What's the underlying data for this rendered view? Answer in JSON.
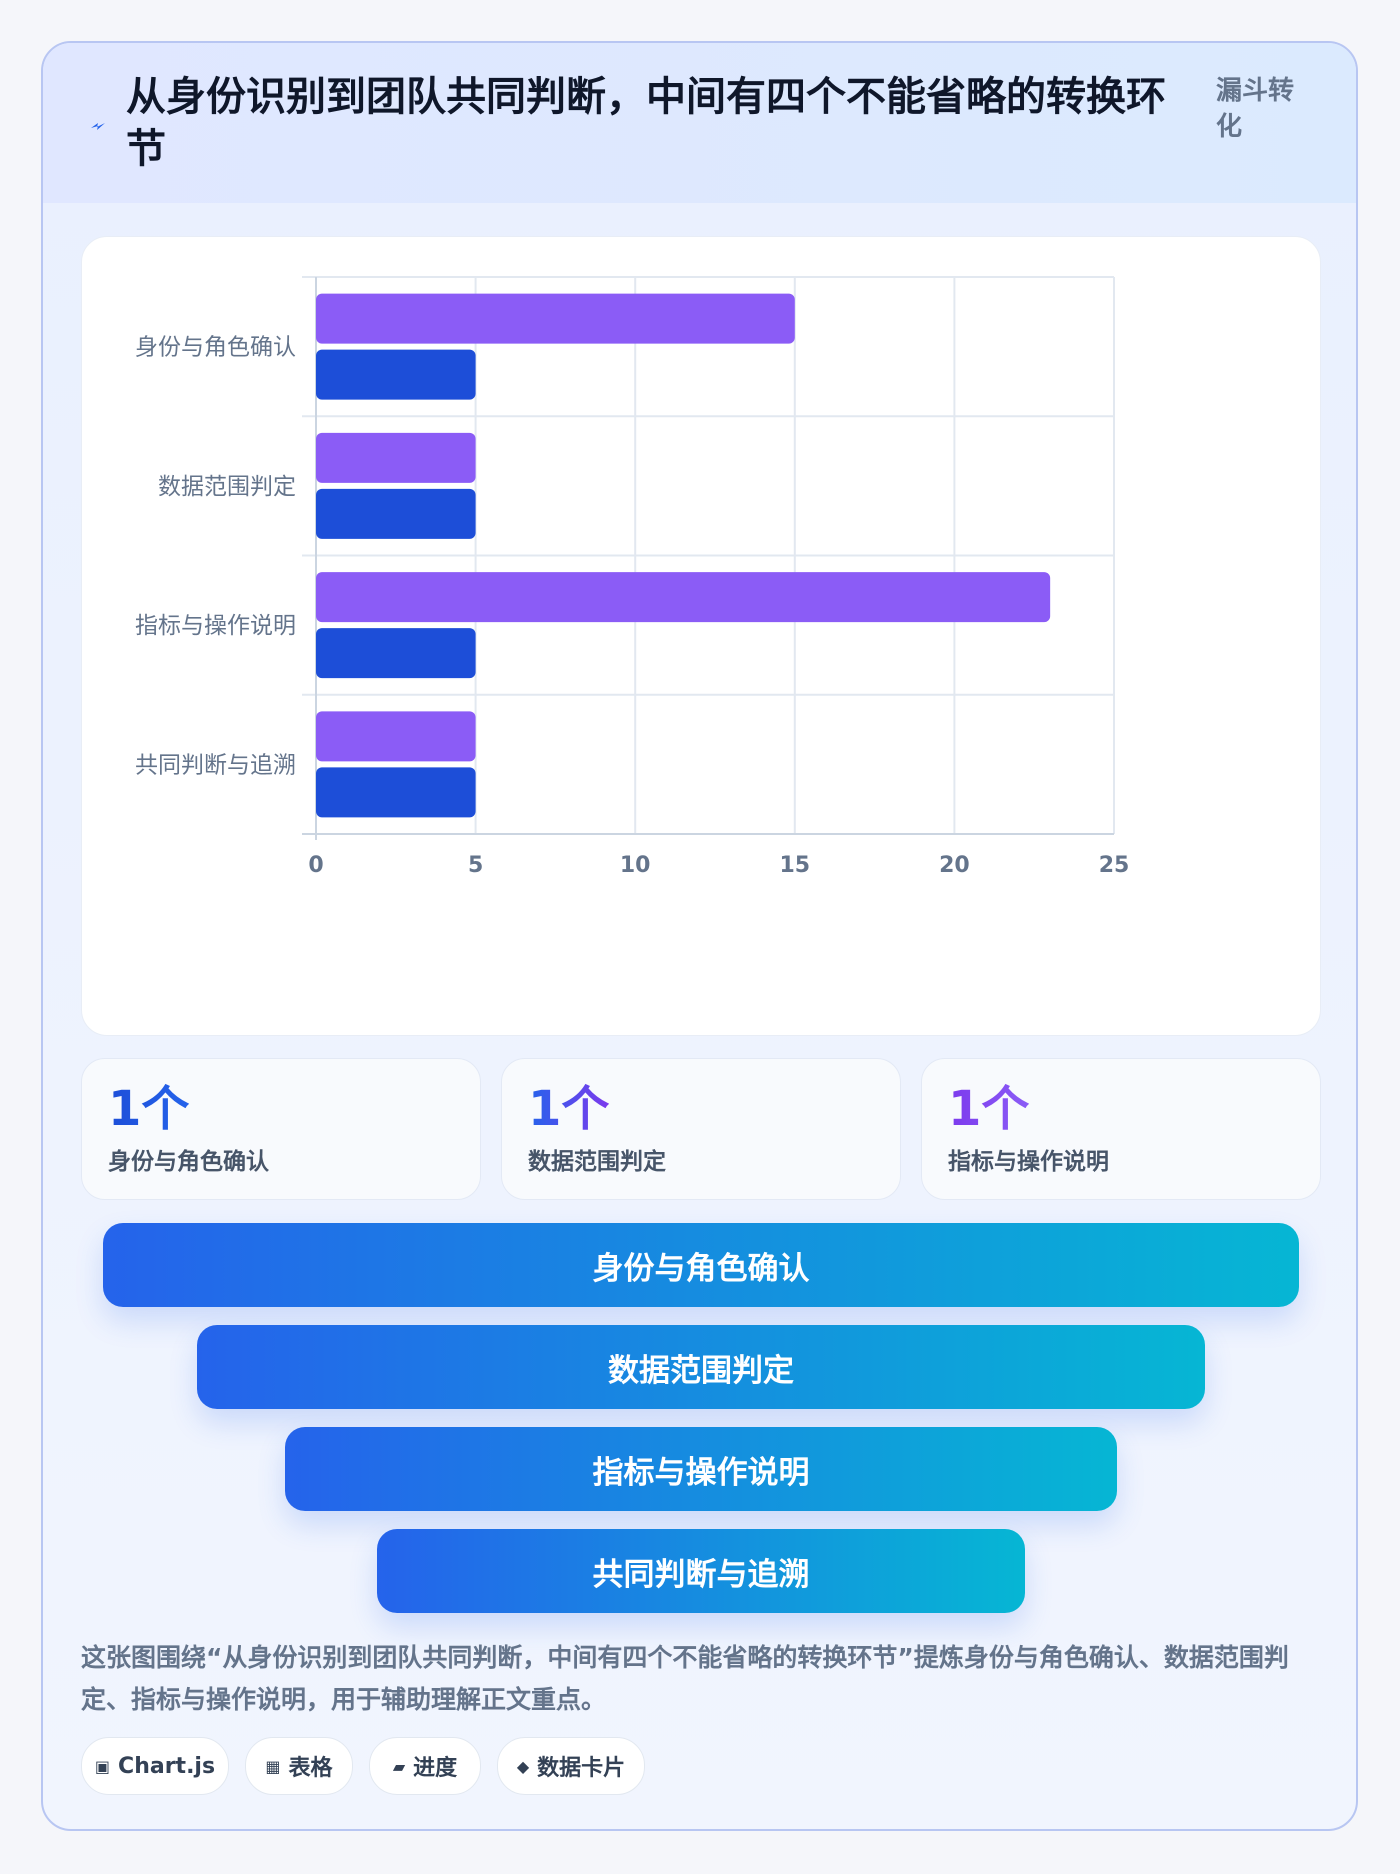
{
  "header": {
    "title": "从身份识别到团队共同判断，中间有四个不能省略的转换环节",
    "tag": "漏斗转化",
    "icon": "lightning-icon"
  },
  "chart_data": {
    "type": "bar",
    "orientation": "horizontal",
    "categories": [
      "身份与角色确认",
      "数据范围判定",
      "指标与操作说明",
      "共同判断与追溯"
    ],
    "series": [
      {
        "values": [
          15,
          5,
          23,
          5
        ],
        "color": "#8b5cf6"
      },
      {
        "values": [
          5,
          5,
          5,
          5
        ],
        "color": "#1d4ed8"
      }
    ],
    "xlim": [
      0,
      25
    ],
    "xticks": [
      "0",
      "5",
      "10",
      "15",
      "20",
      "25"
    ],
    "grid": true,
    "legend": "none"
  },
  "stats": [
    {
      "value": "1个",
      "label": "身份与角色确认",
      "gradient": [
        "#1d4ed8",
        "#2563eb"
      ]
    },
    {
      "value": "1个",
      "label": "数据范围判定",
      "gradient": [
        "#2563eb",
        "#7c3aed"
      ]
    },
    {
      "value": "1个",
      "label": "指标与操作说明",
      "gradient": [
        "#7c3aed",
        "#8b5cf6"
      ]
    }
  ],
  "funnel": [
    "身份与角色确认",
    "数据范围判定",
    "指标与操作说明",
    "共同判断与追溯"
  ],
  "description": "这张图围绕“从身份识别到团队共同判断，中间有四个不能省略的转换环节”提炼身份与角色确认、数据范围判定、指标与操作说明，用于辅助理解正文重点。",
  "chips": [
    {
      "icon": "▣",
      "label": "Chart.js"
    },
    {
      "icon": "▦",
      "label": "表格"
    },
    {
      "icon": "▰",
      "label": "进度"
    },
    {
      "icon": "◆",
      "label": "数据卡片"
    }
  ]
}
